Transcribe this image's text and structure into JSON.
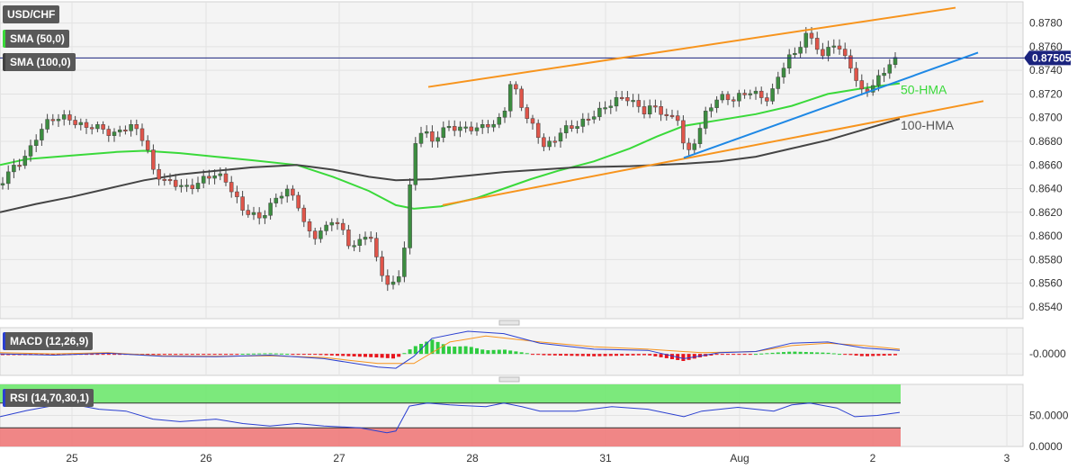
{
  "chart_data": {
    "type": "candlestick",
    "symbol": "USD/CHF",
    "indicator_labels": [
      "SMA (50,0)",
      "SMA (100,0)"
    ],
    "last_price": "0.87505",
    "x_tick_labels": [
      "25",
      "26",
      "27",
      "28",
      "31",
      "Aug",
      "2",
      "3"
    ],
    "y_ticks_main": [
      "0.8780",
      "0.8760",
      "0.8740",
      "0.8720",
      "0.8700",
      "0.8680",
      "0.8660",
      "0.8640",
      "0.8620",
      "0.8600",
      "0.8580",
      "0.8560",
      "0.8540"
    ],
    "ylim_main": [
      0.853,
      0.8798
    ],
    "annotations": [
      "50-HMA",
      "100-HMA"
    ],
    "series": [
      {
        "name": "50-HMA",
        "color": "#3ad93a",
        "points": [
          [
            0,
            0.866
          ],
          [
            30,
            0.8665
          ],
          [
            80,
            0.8668
          ],
          [
            130,
            0.8671
          ],
          [
            160,
            0.8672
          ],
          [
            200,
            0.867
          ],
          [
            240,
            0.8667
          ],
          [
            280,
            0.8664
          ],
          [
            330,
            0.866
          ],
          [
            370,
            0.865
          ],
          [
            410,
            0.8638
          ],
          [
            440,
            0.8626
          ],
          [
            460,
            0.8623
          ],
          [
            490,
            0.8625
          ],
          [
            530,
            0.8632
          ],
          [
            560,
            0.864
          ],
          [
            590,
            0.8648
          ],
          [
            620,
            0.8655
          ],
          [
            660,
            0.8663
          ],
          [
            700,
            0.8674
          ],
          [
            730,
            0.8684
          ],
          [
            760,
            0.8693
          ],
          [
            800,
            0.8698
          ],
          [
            840,
            0.8703
          ],
          [
            880,
            0.871
          ],
          [
            920,
            0.872
          ],
          [
            960,
            0.8725
          ],
          [
            1000,
            0.8729
          ]
        ]
      },
      {
        "name": "100-HMA",
        "color": "#444444",
        "points": [
          [
            0,
            0.862
          ],
          [
            40,
            0.8627
          ],
          [
            80,
            0.8633
          ],
          [
            120,
            0.864
          ],
          [
            160,
            0.8647
          ],
          [
            200,
            0.8652
          ],
          [
            240,
            0.8655
          ],
          [
            280,
            0.8658
          ],
          [
            330,
            0.866
          ],
          [
            370,
            0.8656
          ],
          [
            410,
            0.865
          ],
          [
            440,
            0.8647
          ],
          [
            480,
            0.8648
          ],
          [
            520,
            0.8651
          ],
          [
            560,
            0.8654
          ],
          [
            600,
            0.8656
          ],
          [
            640,
            0.8658
          ],
          [
            700,
            0.8659
          ],
          [
            760,
            0.8661
          ],
          [
            800,
            0.8663
          ],
          [
            840,
            0.8667
          ],
          [
            880,
            0.8674
          ],
          [
            920,
            0.8681
          ],
          [
            960,
            0.869
          ],
          [
            1000,
            0.8699
          ]
        ]
      }
    ],
    "trend_lines": [
      {
        "color": "#f7941d",
        "from": [
          476,
          0.8726
        ],
        "to": [
          1062,
          0.8793
        ]
      },
      {
        "color": "#f7941d",
        "from": [
          492,
          0.8626
        ],
        "to": [
          1093,
          0.8714
        ]
      },
      {
        "color": "#1e88e5",
        "from": [
          760,
          0.8666
        ],
        "to": [
          1087,
          0.8755
        ]
      }
    ],
    "horizontal_line": {
      "value": 0.87505,
      "color": "#1a237e"
    },
    "candle_path": [
      [
        0,
        0.8643
      ],
      [
        10,
        0.8655
      ],
      [
        20,
        0.866
      ],
      [
        35,
        0.8675
      ],
      [
        45,
        0.869
      ],
      [
        55,
        0.8698
      ],
      [
        65,
        0.87
      ],
      [
        75,
        0.87
      ],
      [
        85,
        0.8695
      ],
      [
        95,
        0.8692
      ],
      [
        105,
        0.8693
      ],
      [
        115,
        0.869
      ],
      [
        125,
        0.8685
      ],
      [
        135,
        0.869
      ],
      [
        145,
        0.8693
      ],
      [
        155,
        0.8688
      ],
      [
        163,
        0.8675
      ],
      [
        170,
        0.8655
      ],
      [
        180,
        0.8648
      ],
      [
        190,
        0.8645
      ],
      [
        200,
        0.8643
      ],
      [
        210,
        0.864
      ],
      [
        220,
        0.8645
      ],
      [
        230,
        0.865
      ],
      [
        240,
        0.8652
      ],
      [
        250,
        0.8648
      ],
      [
        260,
        0.8635
      ],
      [
        270,
        0.8622
      ],
      [
        280,
        0.8618
      ],
      [
        290,
        0.8615
      ],
      [
        300,
        0.8625
      ],
      [
        310,
        0.8635
      ],
      [
        320,
        0.8638
      ],
      [
        330,
        0.863
      ],
      [
        340,
        0.8605
      ],
      [
        350,
        0.86
      ],
      [
        360,
        0.8605
      ],
      [
        370,
        0.8615
      ],
      [
        380,
        0.8605
      ],
      [
        390,
        0.859
      ],
      [
        400,
        0.8595
      ],
      [
        410,
        0.8605
      ],
      [
        420,
        0.8575
      ],
      [
        430,
        0.856
      ],
      [
        440,
        0.8558
      ],
      [
        448,
        0.858
      ],
      [
        453,
        0.862
      ],
      [
        458,
        0.866
      ],
      [
        463,
        0.8685
      ],
      [
        470,
        0.869
      ],
      [
        480,
        0.868
      ],
      [
        490,
        0.8688
      ],
      [
        500,
        0.8693
      ],
      [
        510,
        0.869
      ],
      [
        520,
        0.8692
      ],
      [
        530,
        0.869
      ],
      [
        540,
        0.8695
      ],
      [
        550,
        0.8693
      ],
      [
        560,
        0.8705
      ],
      [
        568,
        0.873
      ],
      [
        575,
        0.872
      ],
      [
        585,
        0.87
      ],
      [
        595,
        0.869
      ],
      [
        605,
        0.8675
      ],
      [
        615,
        0.868
      ],
      [
        625,
        0.869
      ],
      [
        635,
        0.8692
      ],
      [
        645,
        0.8695
      ],
      [
        655,
        0.87
      ],
      [
        665,
        0.8705
      ],
      [
        675,
        0.871
      ],
      [
        685,
        0.8715
      ],
      [
        695,
        0.8718
      ],
      [
        705,
        0.8712
      ],
      [
        715,
        0.8705
      ],
      [
        725,
        0.871
      ],
      [
        735,
        0.8705
      ],
      [
        745,
        0.8698
      ],
      [
        752,
        0.8705
      ],
      [
        758,
        0.868
      ],
      [
        765,
        0.867
      ],
      [
        775,
        0.8685
      ],
      [
        785,
        0.8705
      ],
      [
        795,
        0.8715
      ],
      [
        805,
        0.8718
      ],
      [
        815,
        0.8715
      ],
      [
        825,
        0.872
      ],
      [
        835,
        0.8722
      ],
      [
        845,
        0.8718
      ],
      [
        855,
        0.8715
      ],
      [
        865,
        0.8735
      ],
      [
        875,
        0.875
      ],
      [
        885,
        0.8755
      ],
      [
        895,
        0.877
      ],
      [
        905,
        0.8765
      ],
      [
        915,
        0.875
      ],
      [
        925,
        0.8765
      ],
      [
        935,
        0.8755
      ],
      [
        945,
        0.8745
      ],
      [
        952,
        0.873
      ],
      [
        958,
        0.8722
      ],
      [
        968,
        0.8725
      ],
      [
        978,
        0.8735
      ],
      [
        988,
        0.8745
      ],
      [
        998,
        0.875
      ],
      [
        1002,
        0.875
      ]
    ],
    "macd": {
      "label": "MACD (12,26,9)",
      "ytick": "-0.0000",
      "macd_line": [
        [
          0,
          0.0
        ],
        [
          60,
          -0.05
        ],
        [
          120,
          0.03
        ],
        [
          180,
          -0.1
        ],
        [
          240,
          -0.12
        ],
        [
          300,
          -0.05
        ],
        [
          360,
          -0.2
        ],
        [
          420,
          -0.55
        ],
        [
          440,
          -0.6
        ],
        [
          460,
          -0.1
        ],
        [
          480,
          0.65
        ],
        [
          520,
          0.95
        ],
        [
          560,
          0.85
        ],
        [
          600,
          0.45
        ],
        [
          660,
          0.2
        ],
        [
          720,
          0.15
        ],
        [
          760,
          -0.2
        ],
        [
          800,
          0.05
        ],
        [
          840,
          0.1
        ],
        [
          880,
          0.45
        ],
        [
          920,
          0.5
        ],
        [
          960,
          0.25
        ],
        [
          1000,
          0.15
        ]
      ],
      "signal_line": [
        [
          0,
          0.05
        ],
        [
          60,
          0.0
        ],
        [
          120,
          0.05
        ],
        [
          180,
          -0.08
        ],
        [
          240,
          -0.1
        ],
        [
          300,
          -0.08
        ],
        [
          360,
          -0.15
        ],
        [
          420,
          -0.4
        ],
        [
          460,
          -0.4
        ],
        [
          500,
          0.5
        ],
        [
          540,
          0.75
        ],
        [
          600,
          0.5
        ],
        [
          660,
          0.3
        ],
        [
          720,
          0.2
        ],
        [
          780,
          0.05
        ],
        [
          840,
          0.1
        ],
        [
          880,
          0.35
        ],
        [
          920,
          0.45
        ],
        [
          960,
          0.35
        ],
        [
          1000,
          0.2
        ]
      ],
      "ylim": [
        -0.9,
        1.1
      ]
    },
    "rsi": {
      "label": "RSI (14,70,30,1)",
      "yticks": [
        "50.0000",
        "0.0000"
      ],
      "ylim": [
        0,
        100
      ],
      "overbought": 70,
      "oversold": 30,
      "values": [
        [
          0,
          48
        ],
        [
          30,
          58
        ],
        [
          60,
          66
        ],
        [
          80,
          68
        ],
        [
          110,
          60
        ],
        [
          140,
          57
        ],
        [
          170,
          44
        ],
        [
          200,
          40
        ],
        [
          240,
          44
        ],
        [
          270,
          37
        ],
        [
          300,
          33
        ],
        [
          330,
          37
        ],
        [
          360,
          33
        ],
        [
          400,
          30
        ],
        [
          430,
          22
        ],
        [
          440,
          25
        ],
        [
          455,
          65
        ],
        [
          475,
          70
        ],
        [
          500,
          67
        ],
        [
          540,
          64
        ],
        [
          560,
          70
        ],
        [
          580,
          64
        ],
        [
          600,
          57
        ],
        [
          640,
          57
        ],
        [
          680,
          64
        ],
        [
          720,
          60
        ],
        [
          760,
          48
        ],
        [
          780,
          57
        ],
        [
          820,
          63
        ],
        [
          860,
          57
        ],
        [
          880,
          67
        ],
        [
          900,
          70
        ],
        [
          930,
          62
        ],
        [
          950,
          48
        ],
        [
          975,
          50
        ],
        [
          1000,
          55
        ]
      ]
    }
  }
}
